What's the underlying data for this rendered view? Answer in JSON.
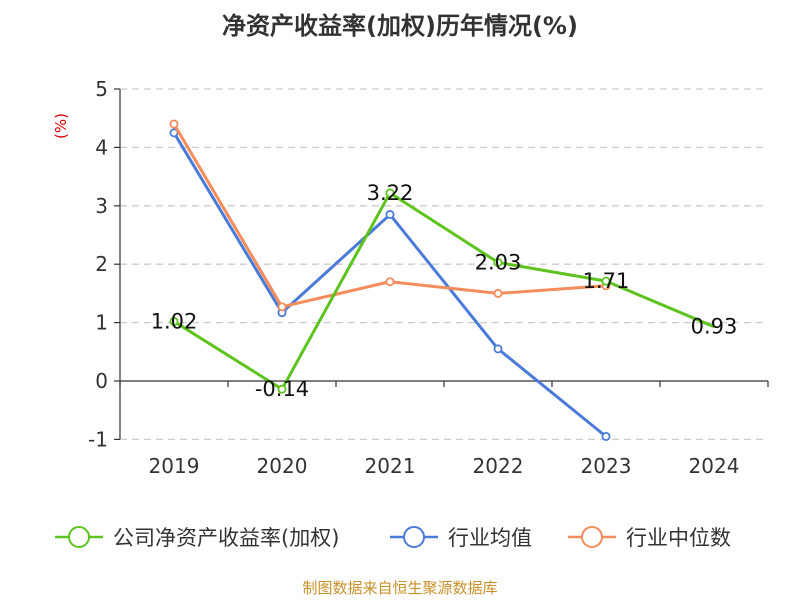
{
  "chart_data": {
    "type": "line",
    "title": "净资产收益率(加权)历年情况(%)",
    "ylabel": "(%)",
    "xlabel": "",
    "categories": [
      "2019",
      "2020",
      "2021",
      "2022",
      "2023",
      "2024"
    ],
    "ylim": [
      -1,
      5
    ],
    "yticks": [
      -1,
      0,
      1,
      2,
      3,
      4,
      5
    ],
    "grid": true,
    "legend_position": "bottom",
    "series": [
      {
        "name": "公司净资产收益率(加权)",
        "color": "#5ec31f",
        "values": [
          1.02,
          -0.14,
          3.22,
          2.03,
          1.71,
          0.93
        ],
        "labels": [
          "1.02",
          "-0.14",
          "3.22",
          "2.03",
          "1.71",
          "0.93"
        ]
      },
      {
        "name": "行业均值",
        "color": "#4b7bd9",
        "values": [
          4.25,
          1.17,
          2.85,
          0.55,
          -0.95,
          null
        ]
      },
      {
        "name": "行业中位数",
        "color": "#f58c5b",
        "values": [
          4.4,
          1.27,
          1.7,
          1.5,
          1.63,
          null
        ]
      }
    ]
  },
  "colors": {
    "title": "#333333",
    "ylabel": "#e00000",
    "axis": "#333333",
    "grid": "#cccccc",
    "source": "#c8902a"
  },
  "source_text": "制图数据来自恒生聚源数据库"
}
